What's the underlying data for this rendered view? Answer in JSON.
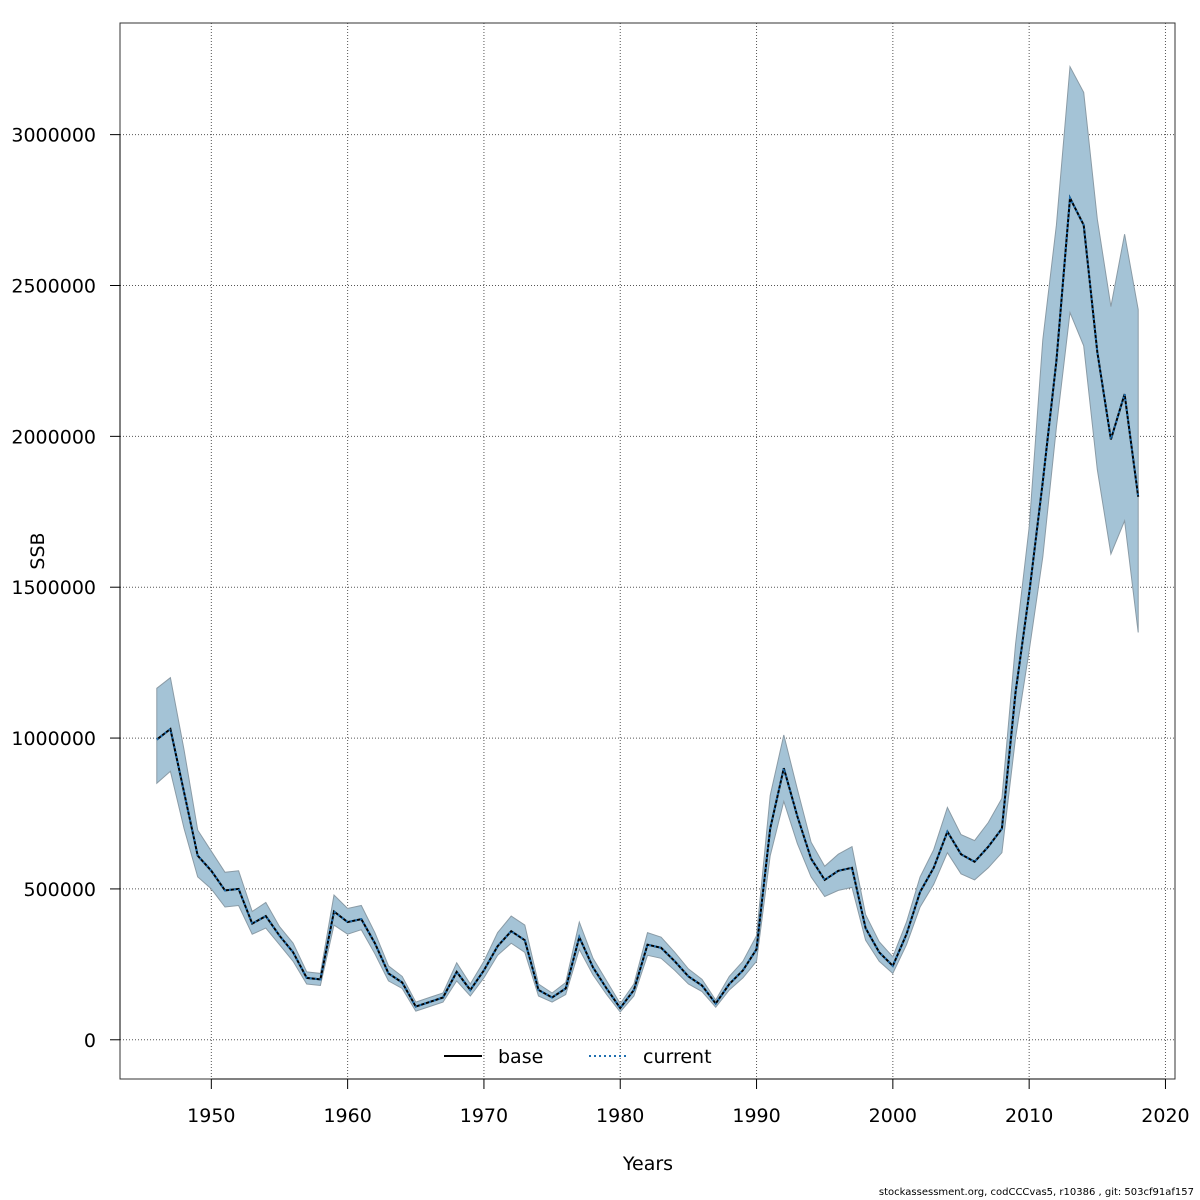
{
  "footer": "stockassessment.org, codCCCvas5, r10386 , git: 503cf91af157",
  "chart_data": {
    "type": "line",
    "xlabel": "Years",
    "ylabel": "SSB",
    "xlim": [
      1943.3,
      2020.7
    ],
    "ylim": [
      -130000,
      3370000
    ],
    "x_ticks": [
      1950,
      1960,
      1970,
      1980,
      1990,
      2000,
      2010,
      2020
    ],
    "y_ticks": [
      0,
      500000,
      1000000,
      1500000,
      2000000,
      2500000,
      3000000
    ],
    "grid": true,
    "legend_position": "bottom-center",
    "colors": {
      "band_fill": "#a4c3d6",
      "band_edge": "#8a9ba6",
      "base": "#000000",
      "current": "#1f6fb0",
      "grid": "#555555"
    },
    "x": [
      1946,
      1947,
      1948,
      1949,
      1950,
      1951,
      1952,
      1953,
      1954,
      1955,
      1956,
      1957,
      1958,
      1959,
      1960,
      1961,
      1962,
      1963,
      1964,
      1965,
      1966,
      1967,
      1968,
      1969,
      1970,
      1971,
      1972,
      1973,
      1974,
      1975,
      1976,
      1977,
      1978,
      1979,
      1980,
      1981,
      1982,
      1983,
      1984,
      1985,
      1986,
      1987,
      1988,
      1989,
      1990,
      1991,
      1992,
      1993,
      1994,
      1995,
      1996,
      1997,
      1998,
      1999,
      2000,
      2001,
      2002,
      2003,
      2004,
      2005,
      2006,
      2007,
      2008,
      2009,
      2010,
      2011,
      2012,
      2013,
      2014,
      2015,
      2016,
      2017,
      2018
    ],
    "series": [
      {
        "name": "base",
        "style": "solid",
        "values": [
          995000,
          1030000,
          820000,
          610000,
          560000,
          495000,
          500000,
          385000,
          410000,
          345000,
          290000,
          205000,
          200000,
          425000,
          390000,
          400000,
          320000,
          220000,
          190000,
          110000,
          125000,
          140000,
          225000,
          165000,
          230000,
          310000,
          360000,
          330000,
          165000,
          140000,
          170000,
          340000,
          240000,
          170000,
          105000,
          165000,
          315000,
          305000,
          260000,
          210000,
          180000,
          120000,
          185000,
          230000,
          300000,
          700000,
          900000,
          740000,
          600000,
          530000,
          560000,
          570000,
          370000,
          290000,
          245000,
          350000,
          490000,
          570000,
          690000,
          615000,
          590000,
          640000,
          700000,
          1150000,
          1480000,
          1850000,
          2250000,
          2790000,
          2700000,
          2280000,
          1990000,
          2140000,
          1800000
        ]
      },
      {
        "name": "current",
        "style": "dotted",
        "values": [
          995000,
          1030000,
          820000,
          610000,
          560000,
          495000,
          500000,
          385000,
          410000,
          345000,
          290000,
          205000,
          200000,
          425000,
          390000,
          400000,
          320000,
          220000,
          190000,
          110000,
          125000,
          140000,
          225000,
          165000,
          230000,
          310000,
          360000,
          330000,
          165000,
          140000,
          170000,
          340000,
          240000,
          170000,
          105000,
          165000,
          315000,
          305000,
          260000,
          210000,
          180000,
          120000,
          185000,
          230000,
          300000,
          700000,
          900000,
          740000,
          600000,
          530000,
          560000,
          570000,
          370000,
          290000,
          245000,
          350000,
          490000,
          570000,
          690000,
          615000,
          590000,
          640000,
          700000,
          1150000,
          1480000,
          1850000,
          2250000,
          2790000,
          2700000,
          2280000,
          1990000,
          2140000,
          1800000
        ]
      }
    ],
    "ci_lower": [
      850000,
      890000,
      700000,
      540000,
      500000,
      440000,
      445000,
      350000,
      370000,
      315000,
      260000,
      185000,
      180000,
      380000,
      350000,
      365000,
      285000,
      195000,
      170000,
      95000,
      110000,
      125000,
      195000,
      145000,
      205000,
      280000,
      320000,
      290000,
      145000,
      125000,
      150000,
      300000,
      215000,
      150000,
      92000,
      145000,
      280000,
      270000,
      230000,
      185000,
      160000,
      108000,
      165000,
      205000,
      260000,
      610000,
      790000,
      650000,
      540000,
      475000,
      495000,
      505000,
      330000,
      260000,
      220000,
      315000,
      440000,
      515000,
      620000,
      550000,
      530000,
      570000,
      620000,
      1000000,
      1290000,
      1600000,
      2030000,
      2410000,
      2300000,
      1890000,
      1610000,
      1720000,
      1350000
    ],
    "ci_upper": [
      1165000,
      1200000,
      960000,
      695000,
      625000,
      555000,
      560000,
      425000,
      455000,
      375000,
      320000,
      225000,
      220000,
      480000,
      435000,
      445000,
      355000,
      245000,
      210000,
      125000,
      140000,
      155000,
      255000,
      185000,
      260000,
      355000,
      410000,
      380000,
      185000,
      155000,
      190000,
      390000,
      270000,
      195000,
      120000,
      185000,
      355000,
      340000,
      290000,
      235000,
      200000,
      132000,
      210000,
      260000,
      345000,
      810000,
      1010000,
      830000,
      655000,
      575000,
      615000,
      640000,
      415000,
      325000,
      275000,
      390000,
      540000,
      630000,
      770000,
      680000,
      660000,
      720000,
      800000,
      1310000,
      1700000,
      2320000,
      2700000,
      3225000,
      3140000,
      2720000,
      2430000,
      2670000,
      2420000
    ]
  }
}
